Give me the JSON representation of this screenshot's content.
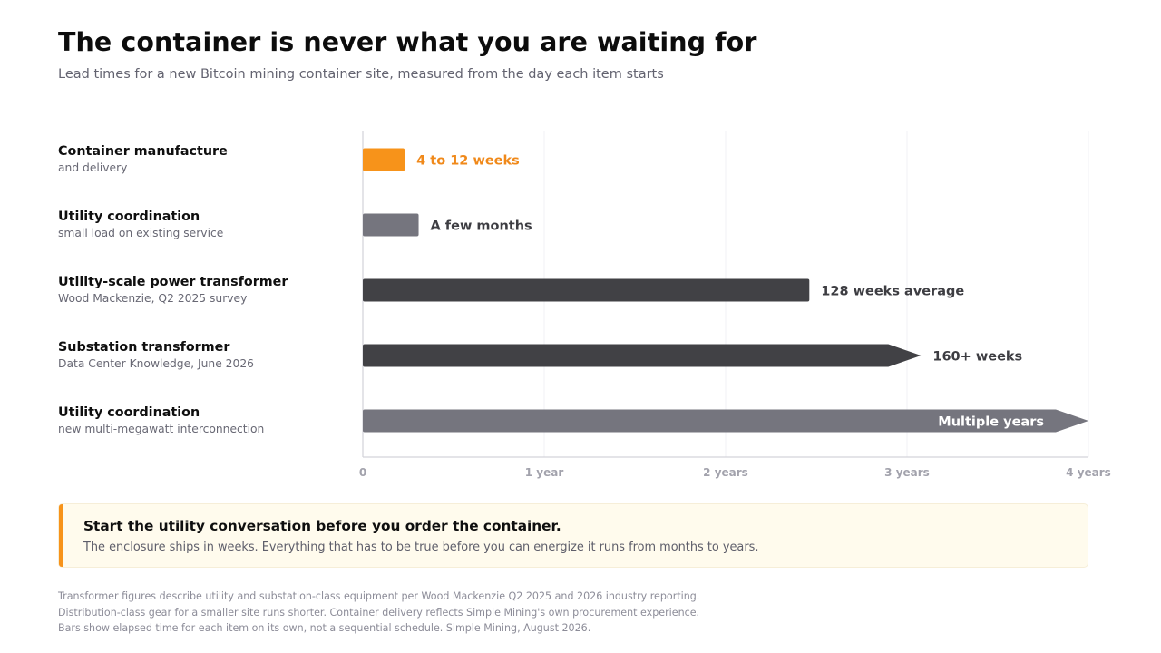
{
  "header": {
    "title": "The container is never what you are waiting for",
    "subtitle": "Lead times for a new Bitcoin mining container site, measured from the day each item starts"
  },
  "rows": [
    {
      "label": "Container manufacture",
      "sublabel": "and delivery"
    },
    {
      "label": "Utility coordination",
      "sublabel": "small load on existing service"
    },
    {
      "label": "Utility-scale power transformer",
      "sublabel": "Wood Mackenzie, Q2 2025 survey"
    },
    {
      "label": "Substation transformer",
      "sublabel": "Data Center Knowledge, June 2026"
    },
    {
      "label": "Utility coordination",
      "sublabel": "new multi-megawatt interconnection"
    }
  ],
  "chart_data": {
    "type": "bar",
    "orientation": "horizontal",
    "x_unit": "weeks",
    "xlim": [
      0,
      208
    ],
    "x_ticks": [
      {
        "value": 0,
        "label": "0"
      },
      {
        "value": 52,
        "label": "1 year"
      },
      {
        "value": 104,
        "label": "2 years"
      },
      {
        "value": 156,
        "label": "3 years"
      },
      {
        "value": 208,
        "label": "4 years"
      }
    ],
    "grid": true,
    "bars": [
      {
        "category": "Container manufacture",
        "start": 0,
        "end": 12,
        "label": "4 to 12 weeks",
        "color": "#f7931a",
        "label_color": "#f0891a",
        "arrow": false,
        "label_inside": false
      },
      {
        "category": "Utility coordination (small load)",
        "start": 0,
        "end": 16,
        "label": "A few months",
        "color": "#75757e",
        "label_color": "#3d3d42",
        "arrow": false,
        "label_inside": false
      },
      {
        "category": "Utility-scale power transformer",
        "start": 0,
        "end": 128,
        "label": "128 weeks average",
        "color": "#414145",
        "label_color": "#3d3d42",
        "arrow": false,
        "label_inside": false
      },
      {
        "category": "Substation transformer",
        "start": 0,
        "end": 160,
        "label": "160+ weeks",
        "color": "#414145",
        "label_color": "#3d3d42",
        "arrow": true,
        "label_inside": false
      },
      {
        "category": "Utility coordination (multi-megawatt)",
        "start": 0,
        "end": 208,
        "label": "Multiple years",
        "color": "#75757e",
        "label_color": "#ffffff",
        "arrow": true,
        "label_inside": true
      }
    ]
  },
  "callout": {
    "title": "Start the utility conversation before you order the container.",
    "text": "The enclosure ships in weeks. Everything that has to be true before you can energize it runs from months to years.",
    "accent_color": "#f7931a"
  },
  "footnotes": [
    "Transformer figures describe utility and substation-class equipment per Wood Mackenzie Q2 2025 and 2026 industry reporting.",
    "Distribution-class gear for a smaller site runs shorter. Container delivery reflects Simple Mining's own procurement experience.",
    "Bars show elapsed time for each item on its own, not a sequential schedule. Simple Mining, August 2026."
  ]
}
